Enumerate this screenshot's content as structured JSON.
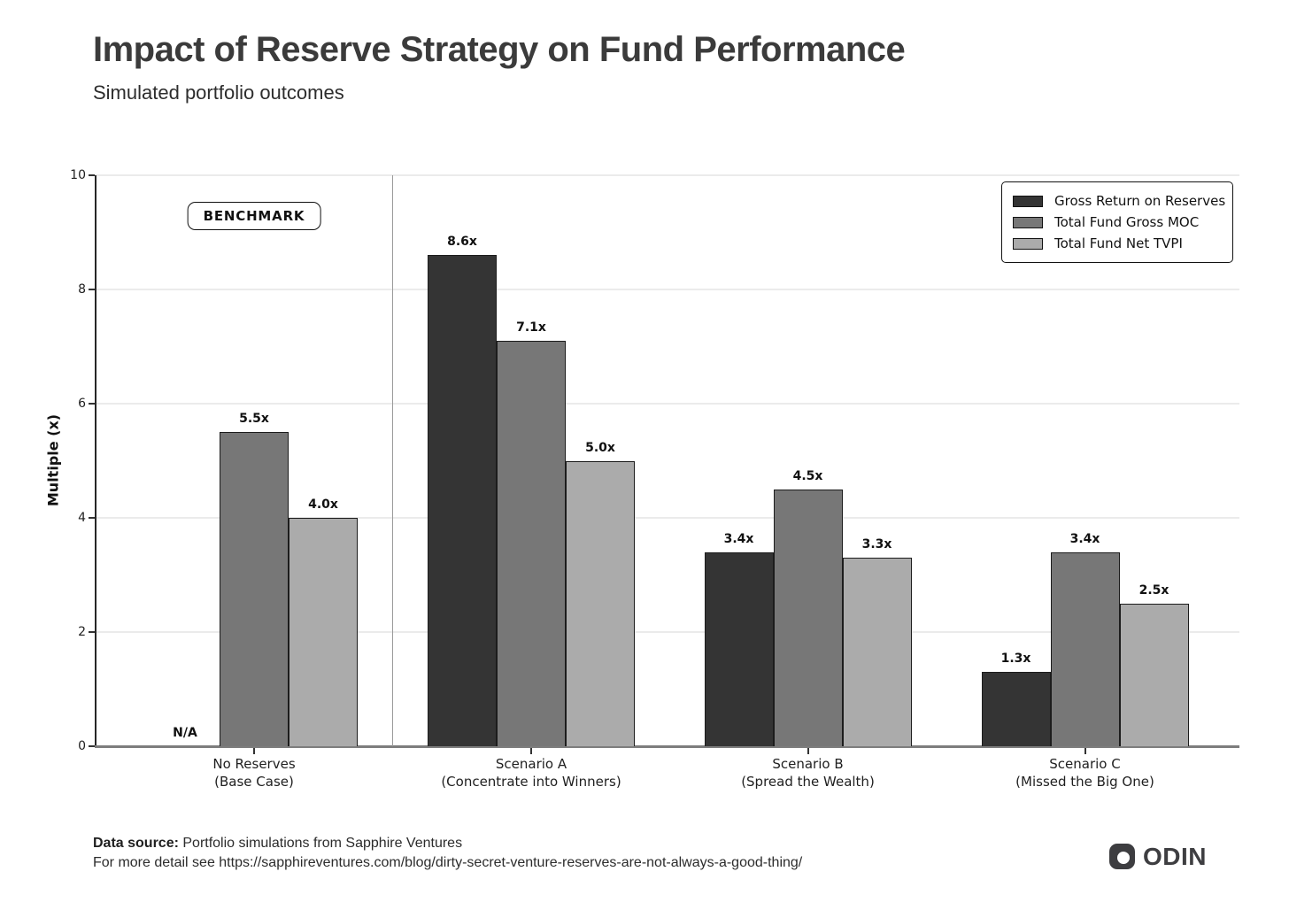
{
  "header": {
    "title": "Impact of Reserve Strategy on Fund Performance",
    "subtitle": "Simulated portfolio outcomes"
  },
  "benchmark": {
    "label": "BENCHMARK"
  },
  "chart_data": {
    "type": "bar",
    "title": "Impact of Reserve Strategy on Fund Performance",
    "subtitle": "Simulated portfolio outcomes",
    "xlabel": "",
    "ylabel": "Multiple (x)",
    "ylim": [
      0,
      10
    ],
    "yticks": [
      0,
      2,
      4,
      6,
      8,
      10
    ],
    "grid": "horizontal",
    "legend_position": "top-right",
    "value_suffix": "x",
    "na_label": "N/A",
    "categories": [
      {
        "line1": "No Reserves",
        "line2": "(Base Case)"
      },
      {
        "line1": "Scenario A",
        "line2": "(Concentrate into Winners)"
      },
      {
        "line1": "Scenario B",
        "line2": "(Spread the Wealth)"
      },
      {
        "line1": "Scenario C",
        "line2": "(Missed the Big One)"
      }
    ],
    "series": [
      {
        "name": "Gross Return on Reserves",
        "color": "#343434",
        "values": [
          null,
          8.6,
          3.4,
          1.3
        ]
      },
      {
        "name": "Total Fund Gross MOC",
        "color": "#777777",
        "values": [
          5.5,
          7.1,
          4.5,
          3.4
        ]
      },
      {
        "name": "Total Fund Net TVPI",
        "color": "#ababab",
        "values": [
          4.0,
          5.0,
          3.3,
          2.5
        ]
      }
    ],
    "annotations": {
      "benchmark_label": "BENCHMARK",
      "divider_after_category": 0
    }
  },
  "footer": {
    "source_label": "Data source:",
    "source_text": " Portfolio simulations from Sapphire Ventures",
    "detail_text": "For more detail see https://sapphireventures.com/blog/dirty-secret-venture-reserves-are-not-always-a-good-thing/"
  },
  "logo": {
    "text": "ODIN"
  }
}
